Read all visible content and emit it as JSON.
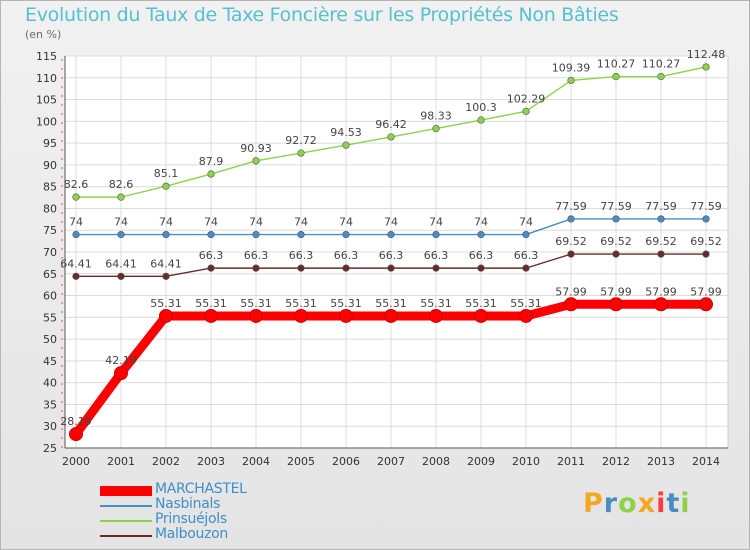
{
  "chart_data": {
    "type": "line",
    "title": "Evolution du Taux de Taxe Foncière sur les Propriétés Non Bâties",
    "subtitle": "(en %)",
    "xlabel": "",
    "ylabel": "",
    "x": [
      "2000",
      "2001",
      "2002",
      "2003",
      "2004",
      "2005",
      "2006",
      "2007",
      "2008",
      "2009",
      "2010",
      "2011",
      "2012",
      "2013",
      "2014"
    ],
    "ylim": [
      25,
      115
    ],
    "yticks": [
      25,
      30,
      35,
      40,
      45,
      50,
      55,
      60,
      65,
      70,
      75,
      80,
      85,
      90,
      95,
      100,
      105,
      110,
      115
    ],
    "grid": true,
    "legend_position": "bottom-left",
    "series": [
      {
        "name": "MARCHASTEL",
        "color": "#ff0000",
        "values": [
          28.19,
          42.19,
          55.31,
          55.31,
          55.31,
          55.31,
          55.31,
          55.31,
          55.31,
          55.31,
          55.31,
          57.99,
          57.99,
          57.99,
          57.99
        ],
        "labels": [
          "28.19",
          "42.19",
          "55.31",
          "55.31",
          "55.31",
          "55.31",
          "55.31",
          "55.31",
          "55.31",
          "55.31",
          "55.31",
          "57.99",
          "57.99",
          "57.99",
          "57.99"
        ]
      },
      {
        "name": "Nasbinals",
        "color": "#4a8dc4",
        "values": [
          74,
          74,
          74,
          74,
          74,
          74,
          74,
          74,
          74,
          74,
          74,
          77.59,
          77.59,
          77.59,
          77.59
        ],
        "labels": [
          "74",
          "74",
          "74",
          "74",
          "74",
          "74",
          "74",
          "74",
          "74",
          "74",
          "74",
          "77.59",
          "77.59",
          "77.59",
          "77.59"
        ]
      },
      {
        "name": "Prinsuéjols",
        "color": "#8ed24a",
        "values": [
          82.6,
          82.6,
          85.1,
          87.9,
          90.93,
          92.72,
          94.53,
          96.42,
          98.33,
          100.3,
          102.29,
          109.39,
          110.27,
          110.27,
          112.48
        ],
        "labels": [
          "82.6",
          "82.6",
          "85.1",
          "87.9",
          "90.93",
          "92.72",
          "94.53",
          "96.42",
          "98.33",
          "100.3",
          "102.29",
          "109.39",
          "110.27",
          "110.27",
          "112.48"
        ]
      },
      {
        "name": "Malbouzon",
        "color": "#6b2a2a",
        "values": [
          64.41,
          64.41,
          64.41,
          66.3,
          66.3,
          66.3,
          66.3,
          66.3,
          66.3,
          66.3,
          66.3,
          69.52,
          69.52,
          69.52,
          69.52
        ],
        "labels": [
          "64.41",
          "64.41",
          "64.41",
          "66.3",
          "66.3",
          "66.3",
          "66.3",
          "66.3",
          "66.3",
          "66.3",
          "66.3",
          "69.52",
          "69.52",
          "69.52",
          "69.52"
        ]
      }
    ]
  },
  "logo": {
    "letters": [
      "P",
      "r",
      "o",
      "x",
      "i",
      "t",
      "i"
    ],
    "colors": [
      "#f5a623",
      "#4a8dc4",
      "#8ed24a",
      "#f5a623",
      "#ff3b3b",
      "#4a8dc4",
      "#8ed24a"
    ]
  }
}
